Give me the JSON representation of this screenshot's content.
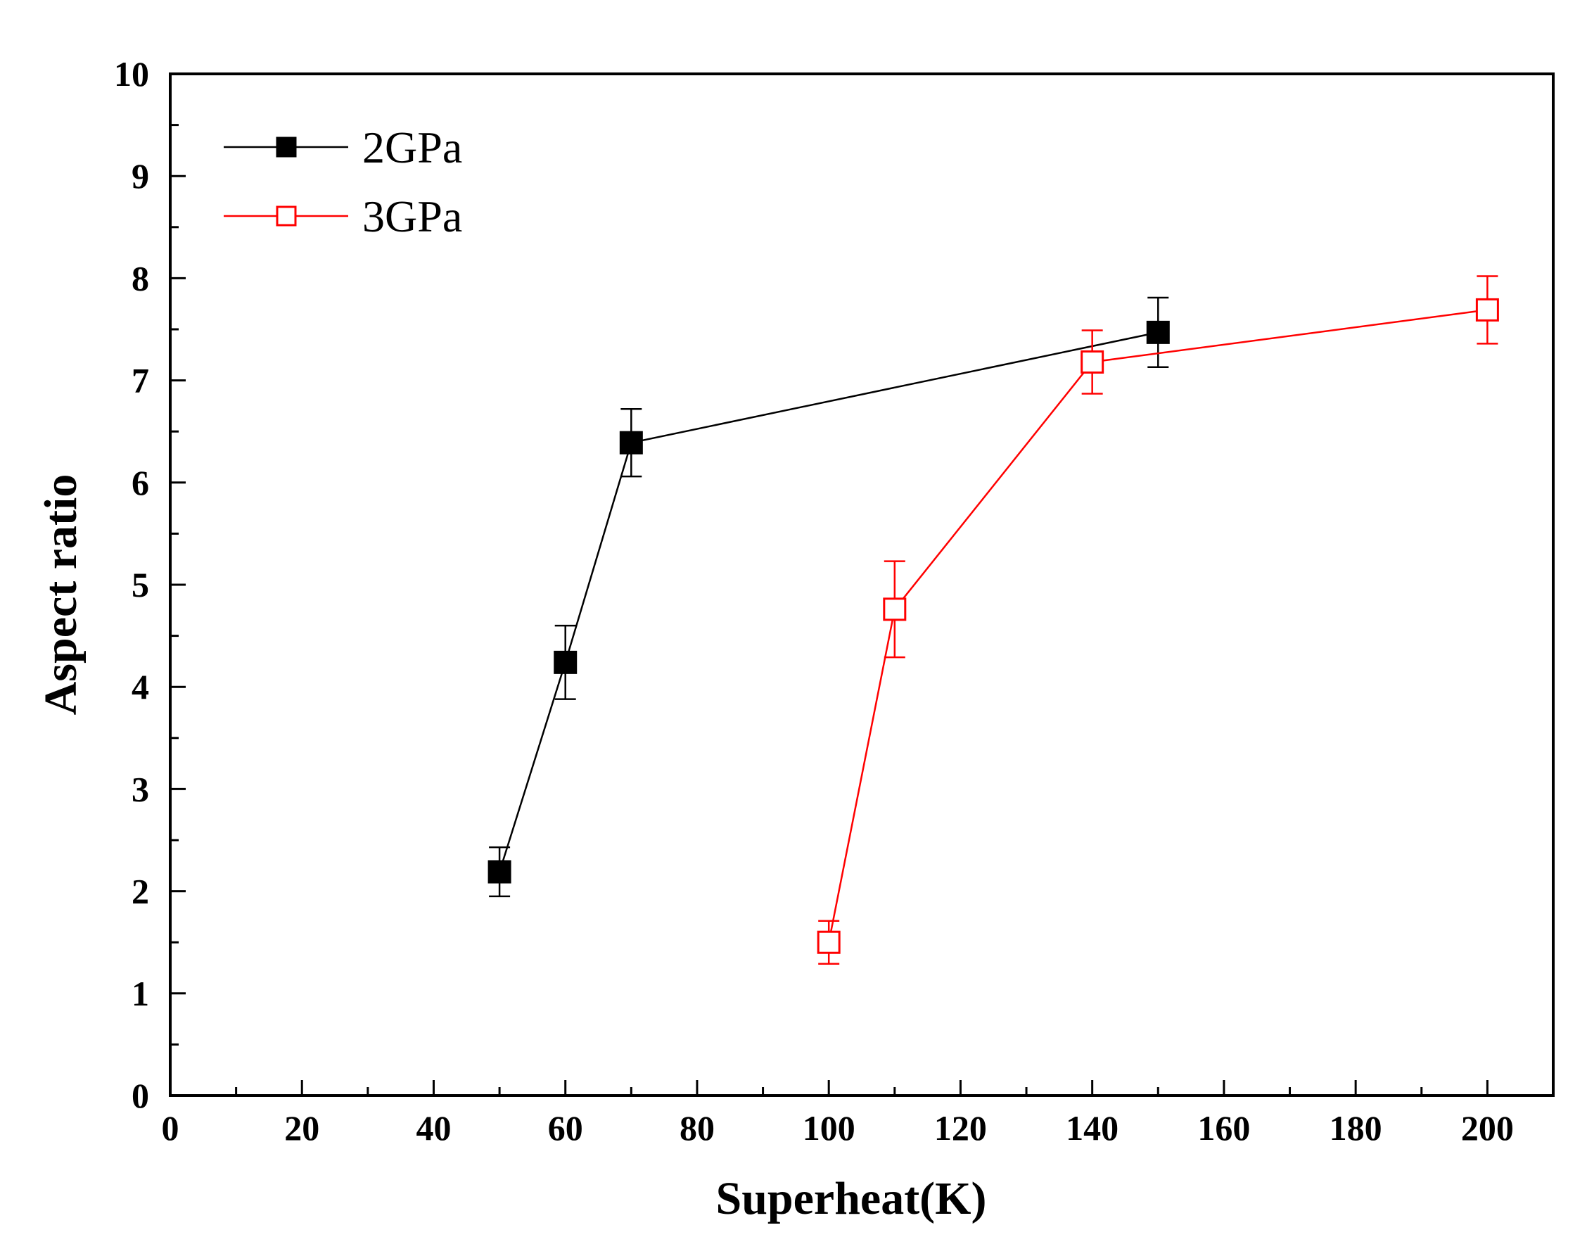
{
  "chart_data": {
    "type": "line",
    "title": "",
    "xlabel": "Superheat(K)",
    "ylabel": "Aspect ratio",
    "xlim": [
      0,
      210
    ],
    "ylim": [
      0,
      10
    ],
    "x_ticks": [
      0,
      20,
      40,
      60,
      80,
      100,
      120,
      140,
      160,
      180,
      200
    ],
    "y_ticks": [
      0,
      1,
      2,
      3,
      4,
      5,
      6,
      7,
      8,
      9,
      10
    ],
    "legend_position": "top-left",
    "series": [
      {
        "name": "2GPa",
        "color": "#000000",
        "marker": "filled-square",
        "x": [
          50,
          60,
          70,
          150
        ],
        "y": [
          2.19,
          4.24,
          6.39,
          7.47
        ],
        "error": [
          0.24,
          0.36,
          0.33,
          0.34
        ]
      },
      {
        "name": "3GPa",
        "color": "#ff0000",
        "marker": "open-square",
        "x": [
          100,
          110,
          140,
          200
        ],
        "y": [
          1.5,
          4.76,
          7.18,
          7.69
        ],
        "error": [
          0.21,
          0.47,
          0.31,
          0.33
        ]
      }
    ]
  }
}
